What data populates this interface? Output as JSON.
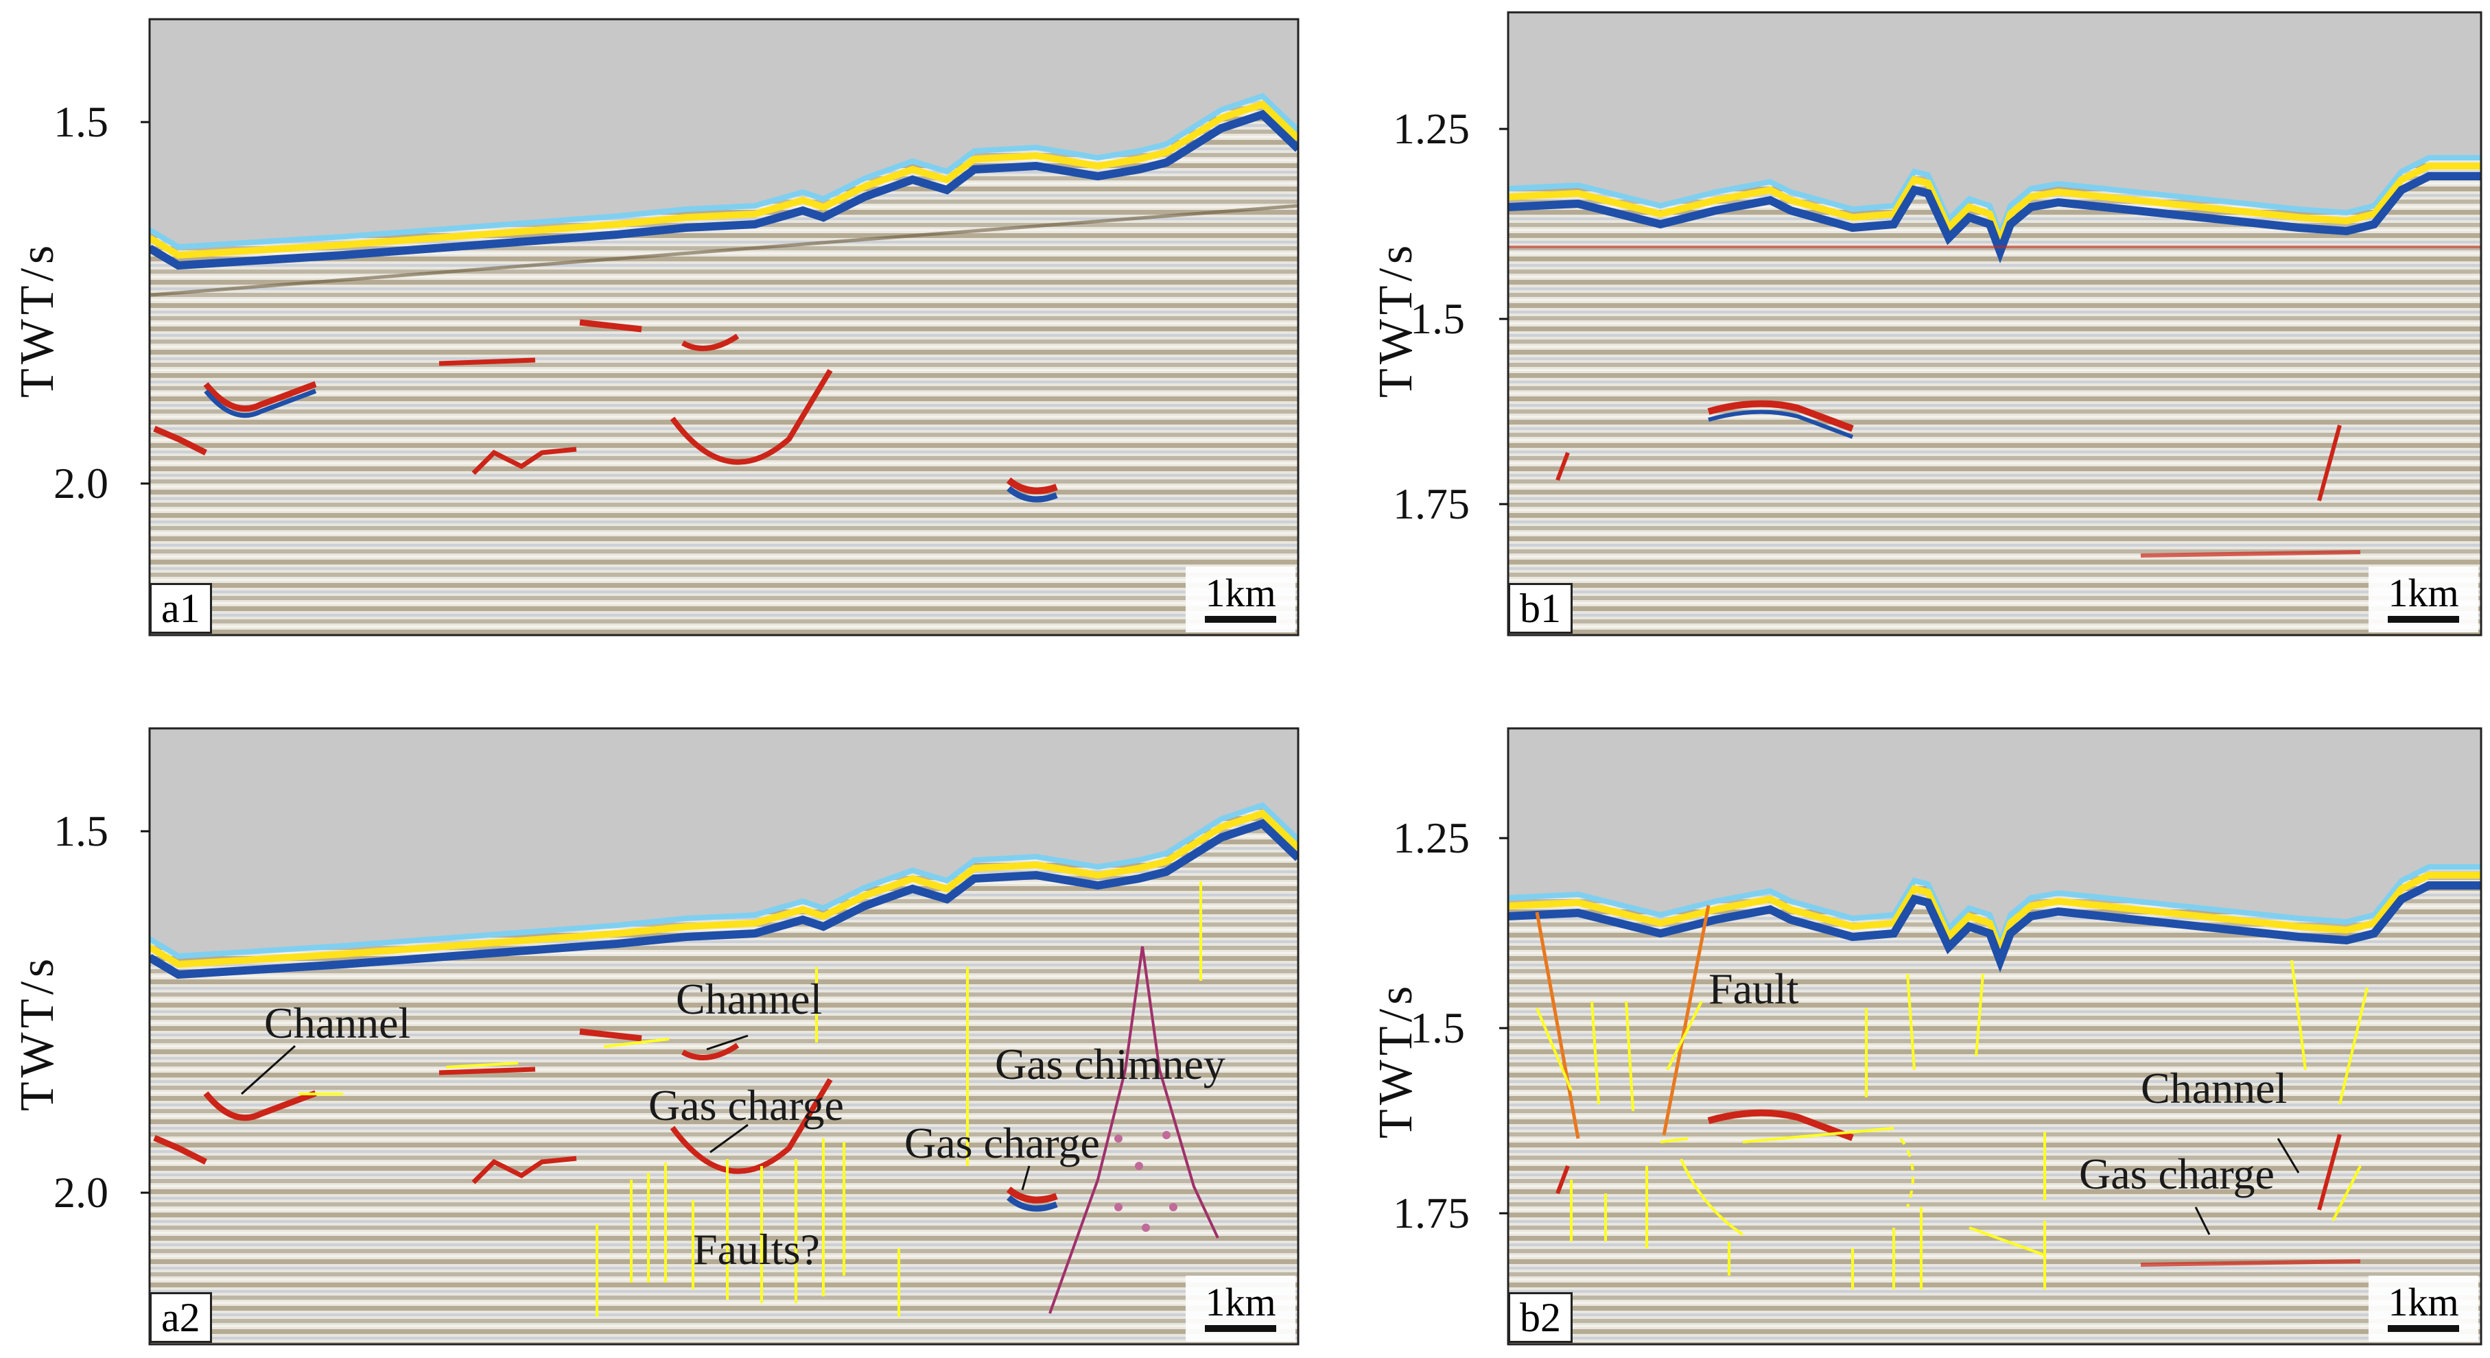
{
  "panels": {
    "a1": {
      "label": "a1",
      "scale": "1km",
      "y_ticks": [
        "1.5",
        "2.0"
      ]
    },
    "b1": {
      "label": "b1",
      "scale": "1km",
      "y_ticks": [
        "1.25",
        "1.5",
        "1.75"
      ]
    },
    "a2": {
      "label": "a2",
      "scale": "1km",
      "y_ticks": [
        "1.5",
        "2.0"
      ]
    },
    "b2": {
      "label": "b2",
      "scale": "1km",
      "y_ticks": [
        "1.25",
        "1.5",
        "1.75"
      ]
    }
  },
  "y_axis_title": "TWT/s",
  "annotations": {
    "a2_channel_left": "Channel",
    "a2_channel_mid": "Channel",
    "a2_gas_chimney": "Gas chimney",
    "a2_gas_charge_mid": "Gas charge",
    "a2_gas_charge_right": "Gas charge",
    "a2_faults": "Faults?",
    "b2_fault": "Fault",
    "b2_channel": "Channel",
    "b2_gas_charge": "Gas charge"
  },
  "colors": {
    "sky": "#c8c8c8",
    "seafloor_yellow": "#ffe21a",
    "seafloor_blue": "#1f4fa8",
    "seafloor_cyan": "#7fd0f0",
    "reflector_red": "#cc2418",
    "reflector_brown": "#6b5a3a",
    "arrow_yellow": "#ffff22",
    "chimney_purple": "#a0306a",
    "fault_orange": "#e8781e"
  }
}
